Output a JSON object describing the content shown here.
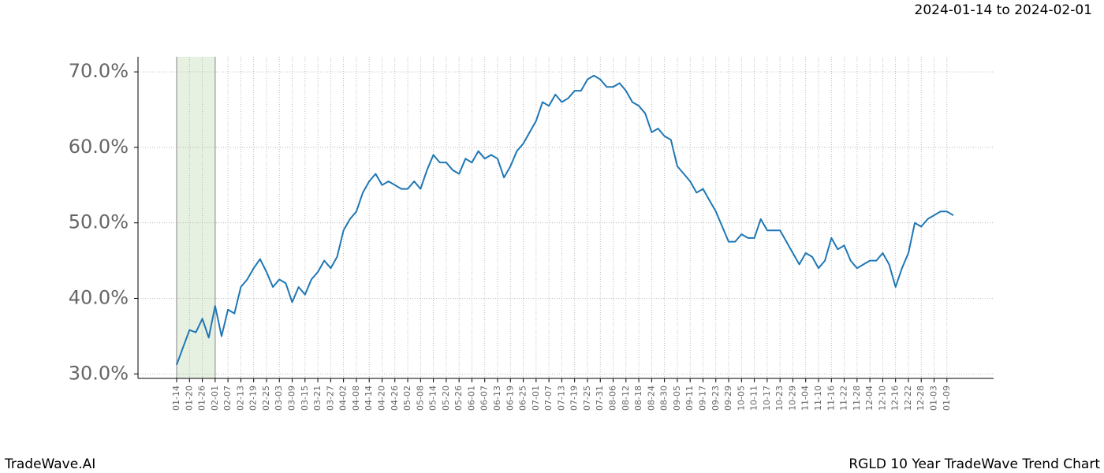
{
  "chart_data": {
    "type": "line",
    "title": "2024-01-14 to 2024-02-01",
    "footer_left": "TradeWave.AI",
    "footer_right": "RGLD 10 Year TradeWave Trend Chart",
    "color": "#1f77b4",
    "highlight_color": "#d9ead3",
    "categories": [
      "01-14",
      null,
      "01-20",
      null,
      "01-26",
      null,
      "02-01",
      null,
      "02-07",
      null,
      "02-13",
      null,
      "02-19",
      null,
      "02-25",
      null,
      "03-03",
      null,
      "03-09",
      null,
      "03-15",
      null,
      "03-21",
      null,
      "03-27",
      null,
      "04-02",
      null,
      "04-08",
      null,
      "04-14",
      null,
      "04-20",
      null,
      "04-26",
      null,
      "05-02",
      null,
      "05-08",
      null,
      "05-14",
      null,
      "05-20",
      null,
      "05-26",
      null,
      "06-01",
      null,
      "06-07",
      null,
      "06-13",
      null,
      "06-19",
      null,
      "06-25",
      null,
      "07-01",
      null,
      "07-07",
      null,
      "07-13",
      null,
      "07-19",
      null,
      "07-25",
      null,
      "07-31",
      null,
      "08-06",
      null,
      "08-12",
      null,
      "08-18",
      null,
      "08-24",
      null,
      "08-30",
      null,
      "09-05",
      null,
      "09-11",
      null,
      "09-17",
      null,
      "09-23",
      null,
      "09-29",
      null,
      "10-05",
      null,
      "10-11",
      null,
      "10-17",
      null,
      "10-23",
      null,
      "10-29",
      null,
      "11-04",
      null,
      "11-10",
      null,
      "11-16",
      null,
      "11-22",
      null,
      "11-28",
      null,
      "12-04",
      null,
      "12-10",
      null,
      "12-16",
      null,
      "12-22",
      null,
      "12-28",
      null,
      "01-03",
      null,
      "01-09",
      null
    ],
    "values": [
      31.2,
      33.5,
      35.8,
      35.5,
      37.3,
      34.8,
      39.0,
      35.0,
      38.5,
      38.0,
      41.5,
      42.5,
      44.0,
      45.2,
      43.5,
      41.5,
      42.5,
      42.0,
      39.5,
      41.5,
      40.5,
      42.5,
      43.5,
      45.0,
      44.0,
      45.5,
      49.0,
      50.5,
      51.5,
      54.0,
      55.5,
      56.5,
      55.0,
      55.5,
      55.0,
      54.5,
      54.5,
      55.5,
      54.5,
      57.0,
      59.0,
      58.0,
      58.0,
      57.0,
      56.5,
      58.5,
      58.0,
      59.5,
      58.5,
      59.0,
      58.5,
      56.0,
      57.5,
      59.5,
      60.5,
      62.0,
      63.5,
      66.0,
      65.5,
      67.0,
      66.0,
      66.5,
      67.5,
      67.5,
      69.0,
      69.5,
      69.0,
      68.0,
      68.0,
      68.5,
      67.5,
      66.0,
      65.5,
      64.5,
      62.0,
      62.5,
      61.5,
      61.0,
      57.5,
      56.5,
      55.5,
      54.0,
      54.5,
      53.0,
      51.5,
      49.5,
      47.5,
      47.5,
      48.5,
      48.0,
      48.0,
      50.5,
      49.0,
      49.0,
      49.0,
      47.5,
      46.0,
      44.5,
      46.0,
      45.5,
      44.0,
      45.0,
      48.0,
      46.5,
      47.0,
      45.0,
      44.0,
      44.5,
      45.0,
      45.0,
      46.0,
      44.5,
      41.5,
      44.0,
      46.0,
      50.0,
      49.5,
      50.5,
      51.0,
      51.5,
      51.5,
      51.0
    ],
    "ylim": [
      29.4,
      72.0
    ],
    "yticks": [
      {
        "value": 30,
        "label": "30.0%"
      },
      {
        "value": 40,
        "label": "40.0%"
      },
      {
        "value": 50,
        "label": "50.0%"
      },
      {
        "value": 60,
        "label": "60.0%"
      },
      {
        "value": 70,
        "label": "70.0%"
      }
    ],
    "grid": true
  }
}
